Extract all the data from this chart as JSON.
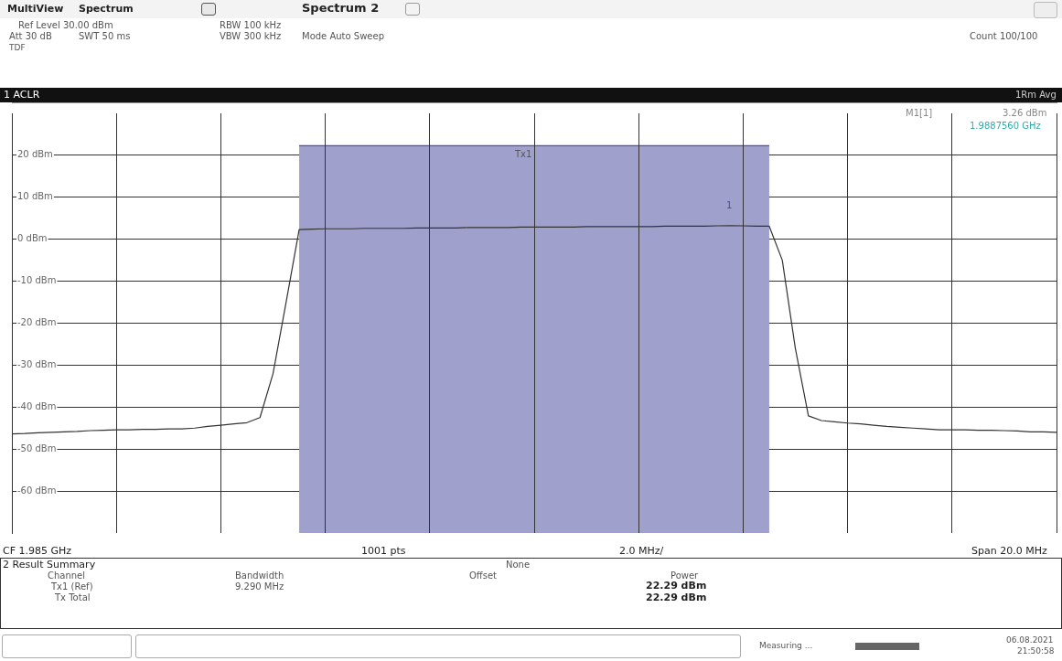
{
  "chart_data": {
    "type": "line",
    "title": "1 ACLR",
    "marker": "none",
    "line_style": "solid",
    "grid": true,
    "legend": false,
    "categories": [
      null,
      null,
      null,
      null,
      null,
      null,
      null,
      null,
      null,
      null,
      null,
      null,
      null,
      null,
      null,
      null,
      null,
      null,
      null,
      null,
      null,
      null,
      null,
      null,
      null,
      null,
      null,
      null,
      null,
      null,
      null,
      null,
      null,
      null,
      null,
      null,
      null,
      null,
      null,
      null,
      null,
      null,
      null,
      null,
      null,
      null,
      null,
      null,
      null,
      null,
      null,
      null,
      null,
      null,
      null,
      null,
      null,
      null,
      null,
      null,
      null,
      null,
      null,
      null,
      null,
      null,
      null,
      null,
      null,
      null,
      null,
      null,
      null,
      null,
      null,
      null,
      null,
      null,
      null,
      null,
      null
    ],
    "ylim": [
      -70,
      30
    ],
    "yticks": [
      {
        "value": 20,
        "label": "20 dBm"
      },
      {
        "value": 10,
        "label": "10 dBm"
      },
      {
        "value": 0,
        "label": "0 dBm"
      },
      {
        "value": -10,
        "label": "-10 dBm"
      },
      {
        "value": -20,
        "label": "-20 dBm"
      },
      {
        "value": -30,
        "label": "-30 dBm"
      },
      {
        "value": -40,
        "label": "-40 dBm"
      },
      {
        "value": -50,
        "label": "-50 dBm"
      },
      {
        "value": -60,
        "label": "-60 dBm"
      }
    ],
    "series": [
      {
        "color": "#4a4ab0",
        "values": [
          null,
          null,
          null,
          null,
          null,
          null,
          null,
          null,
          null,
          null,
          null,
          null,
          null,
          null,
          null,
          null,
          null,
          null,
          null,
          null,
          null,
          null,
          22.29,
          22.29,
          22.29,
          22.29,
          22.29,
          22.29,
          22.29,
          22.29,
          22.29,
          22.29,
          22.29,
          22.29,
          22.29,
          22.29,
          22.29,
          22.29,
          22.29,
          22.29,
          22.29,
          22.29,
          22.29,
          22.29,
          22.29,
          22.29,
          22.29,
          22.29,
          22.29,
          22.29,
          22.29,
          22.29,
          22.29,
          22.29,
          22.29,
          22.29,
          22.29,
          22.29,
          22.29,
          null,
          null,
          null,
          null,
          null,
          null,
          null,
          null,
          null,
          null,
          null,
          null,
          null,
          null,
          null,
          null,
          null,
          null,
          null,
          null,
          null,
          null
        ],
        "upper": [
          null,
          null,
          null,
          null,
          null,
          null,
          null,
          null,
          null,
          null,
          null,
          null,
          null,
          null,
          null,
          null,
          null,
          null,
          null,
          null,
          null,
          null,
          22.29,
          22.29,
          22.29,
          22.29,
          22.29,
          22.29,
          22.29,
          22.29,
          22.29,
          22.29,
          22.29,
          22.29,
          22.29,
          22.29,
          22.29,
          22.29,
          22.29,
          22.29,
          22.29,
          22.29,
          22.29,
          22.29,
          22.29,
          22.29,
          22.29,
          22.29,
          22.29,
          22.29,
          22.29,
          22.29,
          22.29,
          22.29,
          22.29,
          22.29,
          22.29,
          22.29,
          22.29,
          null,
          null,
          null,
          null,
          null,
          null,
          null,
          null,
          null,
          null,
          null,
          null,
          null,
          null,
          null,
          null,
          null,
          null,
          null,
          null,
          null,
          null
        ],
        "lower": [
          null,
          null,
          null,
          null,
          null,
          null,
          null,
          null,
          null,
          null,
          null,
          null,
          null,
          null,
          null,
          null,
          null,
          null,
          null,
          null,
          null,
          null,
          -70,
          -70,
          -70,
          -70,
          -70,
          -70,
          -70,
          -70,
          -70,
          -70,
          -70,
          -70,
          -70,
          -70,
          -70,
          -70,
          -70,
          -70,
          -70,
          -70,
          -70,
          -70,
          -70,
          -70,
          -70,
          -70,
          -70,
          -70,
          -70,
          -70,
          -70,
          -70,
          -70,
          -70,
          -70,
          -70,
          -70,
          null,
          null,
          null,
          null,
          null,
          null,
          null,
          null,
          null,
          null,
          null,
          null,
          null,
          null,
          null,
          null,
          null,
          null,
          null,
          null,
          null,
          null
        ]
      },
      {
        "color": "#333333",
        "values": [
          -46.4,
          -46.3,
          -46.1,
          -46.0,
          -45.9,
          -45.8,
          -45.6,
          -45.5,
          -45.4,
          -45.4,
          -45.3,
          -45.3,
          -45.2,
          -45.2,
          -45.0,
          -44.6,
          -44.3,
          -44.0,
          -43.7,
          -42.5,
          -32,
          -15,
          2.3,
          2.4,
          2.5,
          2.5,
          2.5,
          2.6,
          2.6,
          2.6,
          2.6,
          2.7,
          2.7,
          2.7,
          2.7,
          2.8,
          2.8,
          2.8,
          2.8,
          2.9,
          2.9,
          2.9,
          2.9,
          2.9,
          3.0,
          3.0,
          3.0,
          3.0,
          3.0,
          3.0,
          3.1,
          3.1,
          3.1,
          3.1,
          3.2,
          3.26,
          3.2,
          3.1,
          3.1,
          -5,
          -26,
          -42.1,
          -43.2,
          -43.5,
          -43.8,
          -44.0,
          -44.3,
          -44.6,
          -44.8,
          -45.0,
          -45.2,
          -45.4,
          -45.4,
          -45.4,
          -45.5,
          -45.5,
          -45.6,
          -45.7,
          -45.9,
          -45.9,
          -46.0
        ]
      }
    ],
    "annotations": [
      "MultiView",
      "Spectrum",
      "Spectrum 2",
      "Ref Level 30.00 dBm",
      "Att 30 dB",
      "SWT 50 ms",
      "RBW 100 kHz",
      "VBW 300 kHz",
      "Mode Auto Sweep",
      "TDF",
      "Count 100/100",
      "1Rm Avg",
      "CF 1.985 GHz",
      "1001 pts",
      "2.0 MHz/",
      "Span 20.0 MHz",
      "2 Result Summary",
      "None",
      "Channel",
      "Bandwidth",
      "Offset",
      "Power",
      "Tx1 (Ref)",
      "9.290 MHz",
      "22.29 dBm",
      "Tx Total",
      "22.29 dBm",
      "Measuring ...",
      "06.08.2021",
      "21:50:58",
      "M1[1]",
      "3.26 dBm",
      "1.9887560 GHz",
      "Tx1",
      "1"
    ]
  }
}
